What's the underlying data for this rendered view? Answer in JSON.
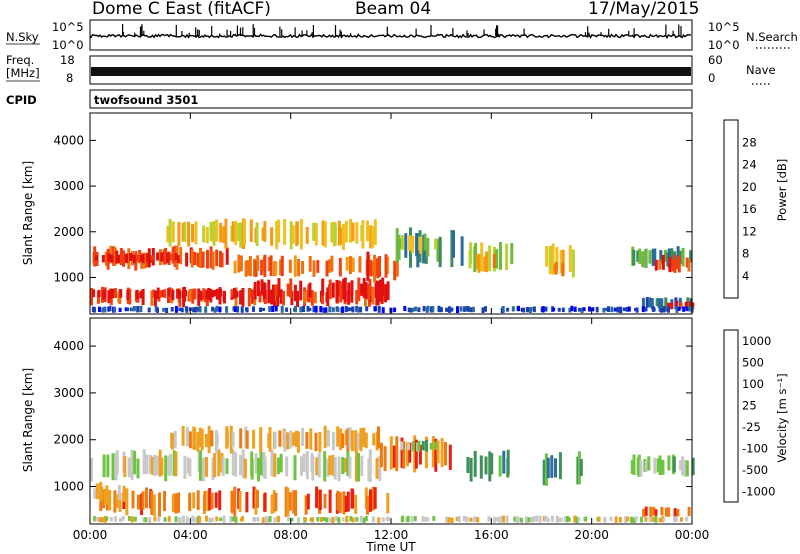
{
  "header": {
    "title_left": "Dome C East (fitACF)",
    "title_center": "Beam 04",
    "title_right": "17/May/2015"
  },
  "strips": {
    "nsky": {
      "label": "N.Sky",
      "left_top": "10^5",
      "left_bottom": "10^0",
      "right_top": "10^5",
      "right_bottom": "10^0",
      "right_label": "N.Search"
    },
    "freq": {
      "label_line1": "Freq.",
      "label_line2": "[MHz]",
      "left_top": "18",
      "left_bottom": "8",
      "right_top": "60",
      "right_bottom": "0",
      "right_label": "Nave"
    },
    "cpid": {
      "label": "CPID",
      "program": "twofsound 3501"
    }
  },
  "x_axis": {
    "label": "Time UT",
    "ticks": [
      "00:00",
      "04:00",
      "08:00",
      "12:00",
      "16:00",
      "20:00",
      "00:00"
    ]
  },
  "colors": {
    "background": "#ffffff",
    "frame": "#000000"
  },
  "chart_data": [
    {
      "type": "heatmap",
      "name": "power",
      "ylabel": "Slant Range [km]",
      "yticks": [
        "1000",
        "2000",
        "3000",
        "4000"
      ],
      "ylim": [
        200,
        4600
      ],
      "xlim_hours": [
        0,
        24
      ],
      "colorbar": {
        "label": "Power [dB]",
        "ticks": [
          "4",
          "8",
          "12",
          "16",
          "20",
          "24",
          "28"
        ],
        "range": [
          0,
          32
        ],
        "colors": [
          "#0000ff",
          "#1a3fb0",
          "#2a6a9e",
          "#3a8c5a",
          "#6fb83f",
          "#b8d230",
          "#f0c020",
          "#f59a10",
          "#f07010",
          "#f04010",
          "#e01010"
        ]
      },
      "regions": [
        {
          "t": [
            0.0,
            11.9
          ],
          "r": [
            350,
            800
          ],
          "cls": 9
        },
        {
          "t": [
            0.0,
            6.5
          ],
          "r": [
            500,
            780
          ],
          "cls": 10
        },
        {
          "t": [
            6.5,
            11.9
          ],
          "r": [
            450,
            1000
          ],
          "cls": 10
        },
        {
          "t": [
            0.0,
            5.5
          ],
          "r": [
            1150,
            1700
          ],
          "cls": 9
        },
        {
          "t": [
            0.0,
            3.5
          ],
          "r": [
            1300,
            1550
          ],
          "cls": 10
        },
        {
          "t": [
            5.5,
            11.9
          ],
          "r": [
            1000,
            1500
          ],
          "cls": 8
        },
        {
          "t": [
            3.0,
            11.5
          ],
          "r": [
            1600,
            2300
          ],
          "cls": 6
        },
        {
          "t": [
            11.0,
            12.2
          ],
          "r": [
            800,
            1600
          ],
          "cls": 9
        },
        {
          "t": [
            12.0,
            14.8
          ],
          "r": [
            1200,
            2100
          ],
          "cls": 3
        },
        {
          "t": [
            12.3,
            13.8
          ],
          "r": [
            1500,
            2000
          ],
          "cls": 5
        },
        {
          "t": [
            15.0,
            16.8
          ],
          "r": [
            1100,
            1800
          ],
          "cls": 5
        },
        {
          "t": [
            15.3,
            16.2
          ],
          "r": [
            1100,
            1600
          ],
          "cls": 7
        },
        {
          "t": [
            18.0,
            19.6
          ],
          "r": [
            1000,
            1800
          ],
          "cls": 6
        },
        {
          "t": [
            18.3,
            18.9
          ],
          "r": [
            1000,
            1400
          ],
          "cls": 8
        },
        {
          "t": [
            21.5,
            24.0
          ],
          "r": [
            1200,
            1700
          ],
          "cls": 3
        },
        {
          "t": [
            22.5,
            24.0
          ],
          "r": [
            1100,
            1500
          ],
          "cls": 9
        },
        {
          "t": [
            22.0,
            24.0
          ],
          "r": [
            300,
            600
          ],
          "cls": 2
        },
        {
          "t": [
            23.0,
            24.0
          ],
          "r": [
            300,
            500
          ],
          "cls": 10
        },
        {
          "t": [
            0.0,
            24.0
          ],
          "r": [
            220,
            380
          ],
          "cls": 1
        }
      ]
    },
    {
      "type": "heatmap",
      "name": "velocity",
      "ylabel": "Slant Range [km]",
      "yticks": [
        "1000",
        "2000",
        "3000",
        "4000"
      ],
      "ylim": [
        200,
        4600
      ],
      "xlim_hours": [
        0,
        24
      ],
      "colorbar": {
        "label": "Velocity [m s⁻¹]",
        "ticks": [
          "1000",
          "500",
          "100",
          "25",
          "-25",
          "-100",
          "-500",
          "-1000"
        ],
        "range": [
          -1250,
          1250
        ],
        "colors": [
          "#2a3f9c",
          "#2f6e9e",
          "#3f8f5a",
          "#6cc43f",
          "#c8c8c8",
          "#f0a020",
          "#f07a10",
          "#e82010"
        ]
      },
      "regions": [
        {
          "t": [
            0.0,
            11.9
          ],
          "r": [
            350,
            1000
          ],
          "cls": 6
        },
        {
          "t": [
            0.0,
            1.5
          ],
          "r": [
            600,
            1100
          ],
          "cls": 5
        },
        {
          "t": [
            0.0,
            11.5
          ],
          "r": [
            1100,
            1800
          ],
          "cls": 4
        },
        {
          "t": [
            3.0,
            11.5
          ],
          "r": [
            1700,
            2300
          ],
          "cls": 5
        },
        {
          "t": [
            11.5,
            14.5
          ],
          "r": [
            1300,
            2100
          ],
          "cls": 6
        },
        {
          "t": [
            12.3,
            13.8
          ],
          "r": [
            1700,
            2000
          ],
          "cls": 3
        },
        {
          "t": [
            15.0,
            16.8
          ],
          "r": [
            1100,
            1800
          ],
          "cls": 2
        },
        {
          "t": [
            18.0,
            19.6
          ],
          "r": [
            1000,
            1800
          ],
          "cls": 2
        },
        {
          "t": [
            21.5,
            24.0
          ],
          "r": [
            1200,
            1700
          ],
          "cls": 3
        },
        {
          "t": [
            22.0,
            24.0
          ],
          "r": [
            300,
            600
          ],
          "cls": 6
        },
        {
          "t": [
            0.0,
            24.0
          ],
          "r": [
            220,
            380
          ],
          "cls": 4
        }
      ]
    }
  ]
}
